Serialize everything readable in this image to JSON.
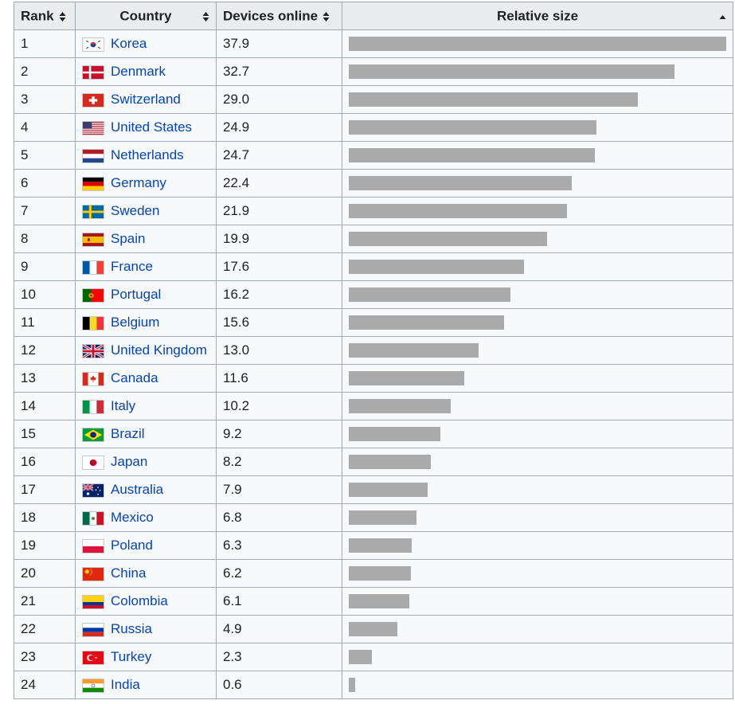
{
  "table": {
    "headers": {
      "rank": "Rank",
      "country": "Country",
      "devices": "Devices online",
      "relative": "Relative size"
    },
    "max_value": 37.9,
    "rows": [
      {
        "rank": "1",
        "country": "Korea",
        "flag": "korea-flag-icon",
        "devices": "37.9",
        "value": 37.9
      },
      {
        "rank": "2",
        "country": "Denmark",
        "flag": "denmark-flag-icon",
        "devices": "32.7",
        "value": 32.7
      },
      {
        "rank": "3",
        "country": "Switzerland",
        "flag": "switzerland-flag-icon",
        "devices": "29.0",
        "value": 29.0
      },
      {
        "rank": "4",
        "country": "United States",
        "flag": "usa-flag-icon",
        "devices": "24.9",
        "value": 24.9
      },
      {
        "rank": "5",
        "country": "Netherlands",
        "flag": "netherlands-flag-icon",
        "devices": "24.7",
        "value": 24.7
      },
      {
        "rank": "6",
        "country": "Germany",
        "flag": "germany-flag-icon",
        "devices": "22.4",
        "value": 22.4
      },
      {
        "rank": "7",
        "country": "Sweden",
        "flag": "sweden-flag-icon",
        "devices": "21.9",
        "value": 21.9
      },
      {
        "rank": "8",
        "country": "Spain",
        "flag": "spain-flag-icon",
        "devices": "19.9",
        "value": 19.9
      },
      {
        "rank": "9",
        "country": "France",
        "flag": "france-flag-icon",
        "devices": "17.6",
        "value": 17.6
      },
      {
        "rank": "10",
        "country": "Portugal",
        "flag": "portugal-flag-icon",
        "devices": "16.2",
        "value": 16.2
      },
      {
        "rank": "11",
        "country": "Belgium",
        "flag": "belgium-flag-icon",
        "devices": "15.6",
        "value": 15.6
      },
      {
        "rank": "12",
        "country": "United Kingdom",
        "flag": "uk-flag-icon",
        "devices": "13.0",
        "value": 13.0
      },
      {
        "rank": "13",
        "country": "Canada",
        "flag": "canada-flag-icon",
        "devices": "11.6",
        "value": 11.6
      },
      {
        "rank": "14",
        "country": "Italy",
        "flag": "italy-flag-icon",
        "devices": "10.2",
        "value": 10.2
      },
      {
        "rank": "15",
        "country": "Brazil",
        "flag": "brazil-flag-icon",
        "devices": "9.2",
        "value": 9.2
      },
      {
        "rank": "16",
        "country": "Japan",
        "flag": "japan-flag-icon",
        "devices": "8.2",
        "value": 8.2
      },
      {
        "rank": "17",
        "country": "Australia",
        "flag": "australia-flag-icon",
        "devices": "7.9",
        "value": 7.9
      },
      {
        "rank": "18",
        "country": "Mexico",
        "flag": "mexico-flag-icon",
        "devices": "6.8",
        "value": 6.8
      },
      {
        "rank": "19",
        "country": "Poland",
        "flag": "poland-flag-icon",
        "devices": "6.3",
        "value": 6.3
      },
      {
        "rank": "20",
        "country": "China",
        "flag": "china-flag-icon",
        "devices": "6.2",
        "value": 6.2
      },
      {
        "rank": "21",
        "country": "Colombia",
        "flag": "colombia-flag-icon",
        "devices": "6.1",
        "value": 6.1
      },
      {
        "rank": "22",
        "country": "Russia",
        "flag": "russia-flag-icon",
        "devices": "4.9",
        "value": 4.9
      },
      {
        "rank": "23",
        "country": "Turkey",
        "flag": "turkey-flag-icon",
        "devices": "2.3",
        "value": 2.3
      },
      {
        "rank": "24",
        "country": "India",
        "flag": "india-flag-icon",
        "devices": "0.6",
        "value": 0.6
      }
    ]
  },
  "colors": {
    "link": "#0645ad",
    "bar": "#aaaaaa",
    "header_bg": "#eaecf0",
    "cell_bg": "#f8f9fa",
    "border": "#a2a9b1"
  }
}
